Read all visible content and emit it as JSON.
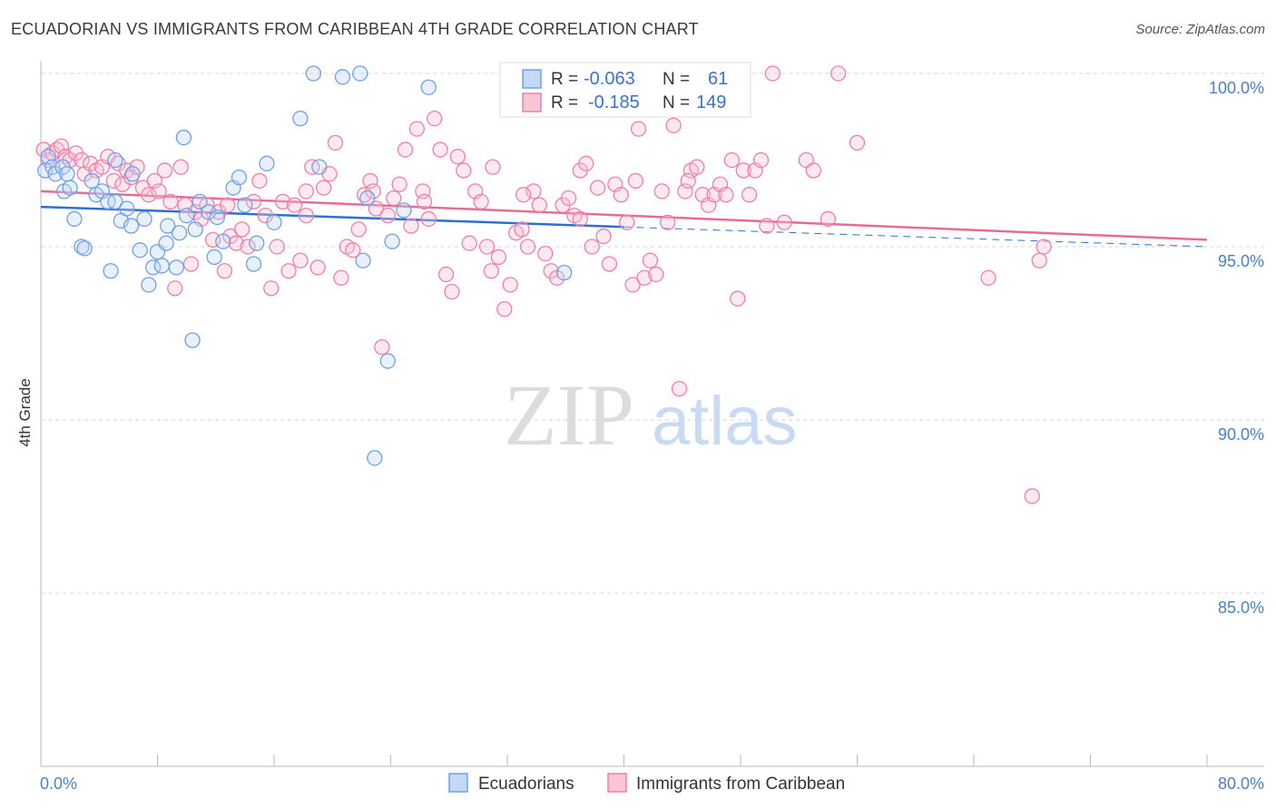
{
  "title": "ECUADORIAN VS IMMIGRANTS FROM CARIBBEAN 4TH GRADE CORRELATION CHART",
  "source": "Source: ZipAtlas.com",
  "watermark": {
    "zip": "ZIP",
    "atlas": "atlas"
  },
  "colors": {
    "blue": "#6fa0e8",
    "blue_line": "#2f6fcf",
    "pink": "#f07fa8",
    "pink_line": "#e56c97",
    "grid": "#d5d5d5",
    "label": "#4a7fc8"
  },
  "legend": {
    "rows": [
      {
        "r_label": "R =",
        "r_value": "-0.063",
        "n_label": "N =",
        "n_value": "61"
      },
      {
        "r_label": "R =",
        "r_value": "-0.185",
        "n_label": "N =",
        "n_value": "149"
      }
    ]
  },
  "chart_data": {
    "type": "scatter",
    "title": "ECUADORIAN VS IMMIGRANTS FROM CARIBBEAN 4TH GRADE CORRELATION CHART",
    "xlabel": "",
    "ylabel": "4th Grade",
    "xlim": [
      0,
      80
    ],
    "ylim": [
      80.2,
      100.8
    ],
    "x_tick_labels": [
      "0.0%",
      "80.0%"
    ],
    "y_ticks": [
      85,
      90,
      95,
      100
    ],
    "y_tick_labels": [
      "85.0%",
      "90.0%",
      "95.0%",
      "100.0%"
    ],
    "grid": true,
    "legend_position": "top-center",
    "series": [
      {
        "name": "Ecuadorians",
        "color": "#6fa0e8",
        "trend": {
          "x": [
            0,
            40
          ],
          "y": [
            96.15,
            95.57
          ],
          "dashed_to": [
            80,
            95.0
          ]
        },
        "points": [
          [
            0.3,
            97.2
          ],
          [
            0.5,
            97.6
          ],
          [
            0.8,
            97.3
          ],
          [
            1.0,
            97.1
          ],
          [
            1.5,
            97.3
          ],
          [
            1.8,
            97.1
          ],
          [
            1.6,
            96.6
          ],
          [
            2.0,
            96.7
          ],
          [
            2.3,
            95.8
          ],
          [
            2.8,
            95.0
          ],
          [
            3.0,
            94.95
          ],
          [
            3.5,
            96.9
          ],
          [
            3.8,
            96.5
          ],
          [
            4.2,
            96.6
          ],
          [
            4.6,
            96.3
          ],
          [
            4.8,
            94.3
          ],
          [
            5.1,
            96.3
          ],
          [
            5.1,
            97.5
          ],
          [
            5.5,
            95.75
          ],
          [
            5.9,
            96.1
          ],
          [
            6.2,
            95.6
          ],
          [
            6.3,
            97.1
          ],
          [
            6.8,
            94.9
          ],
          [
            7.1,
            95.8
          ],
          [
            7.4,
            93.9
          ],
          [
            7.7,
            94.4
          ],
          [
            8.0,
            94.85
          ],
          [
            8.3,
            94.45
          ],
          [
            8.6,
            95.1
          ],
          [
            8.7,
            95.6
          ],
          [
            9.3,
            94.4
          ],
          [
            9.5,
            95.4
          ],
          [
            9.8,
            98.15
          ],
          [
            10.0,
            95.9
          ],
          [
            10.4,
            92.3
          ],
          [
            10.6,
            95.5
          ],
          [
            10.9,
            96.3
          ],
          [
            11.5,
            96.0
          ],
          [
            11.9,
            94.7
          ],
          [
            12.1,
            95.85
          ],
          [
            12.5,
            95.15
          ],
          [
            13.2,
            96.7
          ],
          [
            13.6,
            97.0
          ],
          [
            14.0,
            96.2
          ],
          [
            14.6,
            94.5
          ],
          [
            14.8,
            95.1
          ],
          [
            15.5,
            97.4
          ],
          [
            16.0,
            95.7
          ],
          [
            17.8,
            98.7
          ],
          [
            18.7,
            100.0
          ],
          [
            19.1,
            97.3
          ],
          [
            20.7,
            99.9
          ],
          [
            21.9,
            100.0
          ],
          [
            22.1,
            94.6
          ],
          [
            22.4,
            96.4
          ],
          [
            22.9,
            88.9
          ],
          [
            23.8,
            91.7
          ],
          [
            24.1,
            95.15
          ],
          [
            24.9,
            96.05
          ],
          [
            26.6,
            99.6
          ],
          [
            35.9,
            94.25
          ]
        ]
      },
      {
        "name": "Immigrants from Caribbean",
        "color": "#f07fa8",
        "trend": {
          "x": [
            0,
            80
          ],
          "y": [
            96.6,
            95.2
          ]
        },
        "points": [
          [
            0.2,
            97.8
          ],
          [
            0.5,
            97.5
          ],
          [
            0.8,
            97.7
          ],
          [
            1.1,
            97.8
          ],
          [
            1.4,
            97.9
          ],
          [
            1.7,
            97.6
          ],
          [
            2.0,
            97.5
          ],
          [
            2.4,
            97.7
          ],
          [
            2.8,
            97.5
          ],
          [
            3.0,
            97.1
          ],
          [
            3.4,
            97.4
          ],
          [
            3.8,
            97.2
          ],
          [
            4.2,
            97.3
          ],
          [
            4.6,
            97.6
          ],
          [
            5.0,
            96.9
          ],
          [
            5.3,
            97.4
          ],
          [
            5.6,
            96.8
          ],
          [
            5.9,
            97.2
          ],
          [
            6.2,
            97.0
          ],
          [
            6.6,
            97.3
          ],
          [
            7.0,
            96.7
          ],
          [
            7.4,
            96.5
          ],
          [
            7.8,
            96.9
          ],
          [
            8.1,
            96.6
          ],
          [
            8.5,
            97.2
          ],
          [
            8.9,
            96.3
          ],
          [
            9.2,
            93.8
          ],
          [
            9.6,
            97.3
          ],
          [
            9.9,
            96.2
          ],
          [
            10.3,
            94.5
          ],
          [
            10.6,
            96.0
          ],
          [
            11.0,
            95.8
          ],
          [
            11.4,
            96.2
          ],
          [
            11.8,
            95.2
          ],
          [
            12.2,
            96.0
          ],
          [
            12.6,
            94.3
          ],
          [
            13.0,
            95.3
          ],
          [
            13.4,
            95.1
          ],
          [
            13.8,
            95.5
          ],
          [
            14.2,
            95.0
          ],
          [
            14.6,
            96.3
          ],
          [
            15.0,
            96.9
          ],
          [
            15.4,
            95.9
          ],
          [
            15.8,
            93.8
          ],
          [
            16.2,
            95.0
          ],
          [
            16.6,
            96.3
          ],
          [
            17.0,
            94.3
          ],
          [
            17.4,
            96.2
          ],
          [
            17.8,
            94.6
          ],
          [
            18.2,
            95.9
          ],
          [
            18.6,
            97.3
          ],
          [
            19.0,
            94.4
          ],
          [
            19.4,
            96.7
          ],
          [
            19.8,
            97.1
          ],
          [
            20.2,
            98.0
          ],
          [
            20.6,
            94.1
          ],
          [
            21.0,
            95.0
          ],
          [
            21.4,
            94.9
          ],
          [
            21.8,
            95.5
          ],
          [
            22.2,
            96.5
          ],
          [
            22.6,
            96.9
          ],
          [
            23.0,
            96.1
          ],
          [
            23.4,
            92.1
          ],
          [
            23.8,
            95.9
          ],
          [
            24.2,
            96.4
          ],
          [
            24.6,
            96.8
          ],
          [
            25.0,
            97.8
          ],
          [
            25.4,
            95.6
          ],
          [
            25.8,
            98.4
          ],
          [
            26.2,
            96.6
          ],
          [
            26.6,
            95.8
          ],
          [
            27.0,
            98.7
          ],
          [
            27.4,
            97.8
          ],
          [
            27.8,
            94.2
          ],
          [
            28.2,
            93.7
          ],
          [
            28.6,
            97.6
          ],
          [
            29.0,
            97.2
          ],
          [
            29.4,
            95.1
          ],
          [
            29.8,
            96.6
          ],
          [
            30.2,
            96.3
          ],
          [
            30.6,
            95.0
          ],
          [
            31.0,
            97.3
          ],
          [
            31.4,
            94.7
          ],
          [
            31.8,
            93.2
          ],
          [
            32.2,
            93.9
          ],
          [
            32.6,
            95.4
          ],
          [
            33.0,
            95.5
          ],
          [
            33.4,
            95.0
          ],
          [
            33.8,
            96.6
          ],
          [
            34.2,
            96.2
          ],
          [
            34.6,
            94.8
          ],
          [
            35.0,
            94.3
          ],
          [
            35.4,
            94.1
          ],
          [
            35.8,
            96.2
          ],
          [
            36.2,
            96.4
          ],
          [
            36.6,
            95.9
          ],
          [
            37.0,
            97.2
          ],
          [
            37.4,
            97.4
          ],
          [
            37.8,
            95.0
          ],
          [
            38.2,
            96.7
          ],
          [
            38.6,
            95.3
          ],
          [
            39.0,
            94.5
          ],
          [
            39.4,
            96.8
          ],
          [
            39.8,
            96.5
          ],
          [
            40.2,
            95.7
          ],
          [
            40.6,
            93.9
          ],
          [
            41.0,
            98.4
          ],
          [
            41.4,
            94.1
          ],
          [
            41.8,
            94.6
          ],
          [
            42.2,
            94.2
          ],
          [
            42.6,
            96.6
          ],
          [
            43.0,
            95.7
          ],
          [
            43.4,
            98.5
          ],
          [
            43.8,
            90.9
          ],
          [
            44.2,
            96.6
          ],
          [
            44.6,
            97.2
          ],
          [
            45.0,
            97.3
          ],
          [
            45.4,
            96.5
          ],
          [
            45.8,
            96.2
          ],
          [
            46.2,
            96.5
          ],
          [
            46.6,
            96.8
          ],
          [
            47.0,
            96.5
          ],
          [
            47.4,
            97.5
          ],
          [
            47.8,
            93.5
          ],
          [
            48.2,
            97.2
          ],
          [
            48.6,
            96.5
          ],
          [
            49.0,
            97.2
          ],
          [
            49.4,
            97.5
          ],
          [
            49.8,
            95.6
          ],
          [
            50.2,
            100.0
          ],
          [
            51.0,
            95.7
          ],
          [
            52.5,
            97.5
          ],
          [
            53.0,
            97.2
          ],
          [
            54.0,
            95.8
          ],
          [
            54.7,
            100.0
          ],
          [
            56.0,
            98.0
          ],
          [
            65.0,
            94.1
          ],
          [
            68.5,
            94.6
          ],
          [
            68.8,
            95.0
          ],
          [
            68.0,
            87.8
          ],
          [
            12.8,
            96.2
          ],
          [
            18.2,
            96.6
          ],
          [
            26.3,
            96.3
          ],
          [
            30.9,
            94.3
          ],
          [
            37.0,
            95.8
          ],
          [
            40.8,
            96.9
          ],
          [
            44.4,
            96.9
          ],
          [
            22.8,
            96.6
          ],
          [
            33.1,
            96.5
          ]
        ]
      }
    ]
  }
}
